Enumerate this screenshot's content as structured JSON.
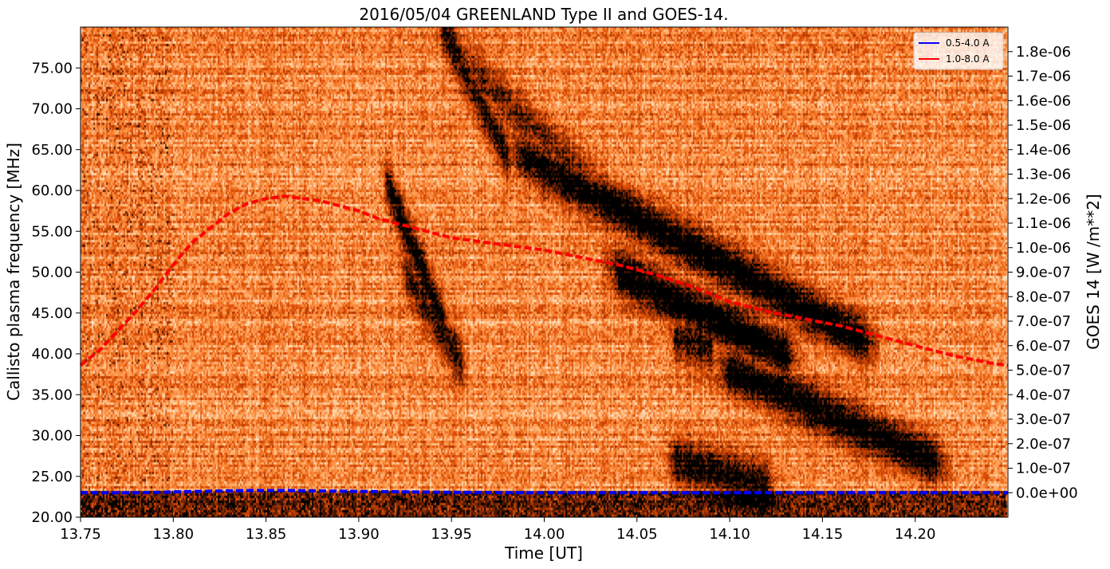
{
  "chart_data": {
    "type": "heatmap",
    "title": "2016/05/04 GREENLAND Type II and GOES-14.",
    "xlabel": "Time [UT]",
    "ylabel": "Callisto plasma frequency [MHz]",
    "y2label": "GOES 14  [W /m**2]",
    "xlim": [
      13.75,
      14.25
    ],
    "ylim": [
      20.0,
      80.0
    ],
    "y2lim": [
      -1e-07,
      1.9e-06
    ],
    "x_ticks": [
      "13.75",
      "13.80",
      "13.85",
      "13.90",
      "13.95",
      "14.00",
      "14.05",
      "14.10",
      "14.15",
      "14.20"
    ],
    "y_ticks": [
      "20.00",
      "25.00",
      "30.00",
      "35.00",
      "40.00",
      "45.00",
      "50.00",
      "55.00",
      "60.00",
      "65.00",
      "70.00",
      "75.00"
    ],
    "y2_ticks": [
      "0.0e+00",
      "1.0e-07",
      "2.0e-07",
      "3.0e-07",
      "4.0e-07",
      "5.0e-07",
      "6.0e-07",
      "7.0e-07",
      "8.0e-07",
      "9.0e-07",
      "1.0e-06",
      "1.1e-06",
      "1.2e-06",
      "1.3e-06",
      "1.4e-06",
      "1.5e-06",
      "1.6e-06",
      "1.7e-06",
      "1.8e-06"
    ],
    "colormap": [
      "#ffffff",
      "#fdd0a2",
      "#fd8d3c",
      "#d94801",
      "#7f2704",
      "#000000"
    ],
    "grid": false,
    "legend_position": "top-right",
    "series": [
      {
        "name": "0.5-4.0 A",
        "color": "#0000ff",
        "x": [
          13.75,
          13.78,
          13.8,
          13.82,
          13.84,
          13.86,
          13.88,
          13.9,
          13.92,
          13.94,
          13.96,
          14.0,
          14.05,
          14.1,
          14.15,
          14.2,
          14.25
        ],
        "y": [
          0.0,
          0.0,
          3e-09,
          6e-09,
          9e-09,
          9e-09,
          7e-09,
          5e-09,
          4e-09,
          2e-09,
          1e-09,
          0.0,
          0.0,
          0.0,
          0.0,
          0.0,
          0.0
        ]
      },
      {
        "name": "1.0-8.0 A",
        "color": "#ff0000",
        "x": [
          13.75,
          13.76,
          13.77,
          13.78,
          13.79,
          13.8,
          13.81,
          13.82,
          13.83,
          13.84,
          13.85,
          13.86,
          13.87,
          13.88,
          13.89,
          13.9,
          13.91,
          13.92,
          13.93,
          13.94,
          13.95,
          13.96,
          13.97,
          13.98,
          13.99,
          14.0,
          14.02,
          14.04,
          14.06,
          14.08,
          14.1,
          14.12,
          14.14,
          14.16,
          14.18,
          14.2,
          14.22,
          14.24,
          14.25
        ],
        "y": [
          5.2e-07,
          5.8e-07,
          6.6e-07,
          7.4e-07,
          8.3e-07,
          9.3e-07,
          1.02e-06,
          1.08e-06,
          1.14e-06,
          1.18e-06,
          1.2e-06,
          1.21e-06,
          1.2e-06,
          1.19e-06,
          1.17e-06,
          1.15e-06,
          1.12e-06,
          1.1e-06,
          1.08e-06,
          1.06e-06,
          1.04e-06,
          1.03e-06,
          1.02e-06,
          1.01e-06,
          1e-06,
          9.9e-07,
          9.6e-07,
          9.3e-07,
          8.9e-07,
          8.4e-07,
          7.8e-07,
          7.4e-07,
          7.1e-07,
          6.8e-07,
          6.4e-07,
          6e-07,
          5.6e-07,
          5.3e-07,
          5.2e-07
        ]
      }
    ],
    "bursts": [
      {
        "t0": 13.945,
        "t1": 13.98,
        "f0": 80.0,
        "f1": 64.0,
        "strength": 0.75
      },
      {
        "t0": 13.96,
        "t1": 14.04,
        "f0": 75.0,
        "f1": 58.0,
        "strength": 0.55
      },
      {
        "t0": 13.99,
        "t1": 14.17,
        "f0": 64.0,
        "f1": 42.0,
        "strength": 0.95
      },
      {
        "t0": 14.04,
        "t1": 14.13,
        "f0": 50.0,
        "f1": 40.0,
        "strength": 1.0
      },
      {
        "t0": 14.1,
        "t1": 14.21,
        "f0": 38.0,
        "f1": 27.0,
        "strength": 0.95
      },
      {
        "t0": 13.915,
        "t1": 13.945,
        "f0": 61.0,
        "f1": 44.0,
        "strength": 0.85
      },
      {
        "t0": 13.925,
        "t1": 13.955,
        "f0": 50.0,
        "f1": 39.0,
        "strength": 0.7
      },
      {
        "t0": 14.07,
        "t1": 14.12,
        "f0": 27.0,
        "f1": 24.0,
        "strength": 0.8
      },
      {
        "t0": 14.07,
        "t1": 14.09,
        "f0": 42.0,
        "f1": 40.5,
        "strength": 0.7
      }
    ]
  }
}
